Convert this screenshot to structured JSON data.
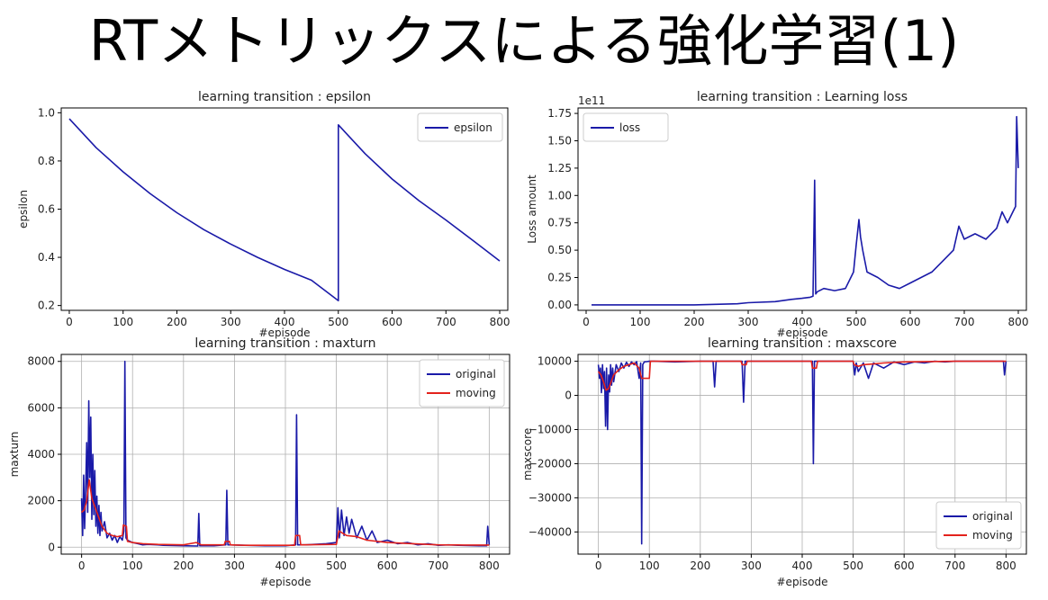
{
  "slide": {
    "title": "RTメトリックスによる強化学習(1)"
  },
  "colors": {
    "original": "#1a1aa8",
    "moving": "#e3221c",
    "axis": "#000000",
    "grid": "#b0b0b0"
  },
  "chart_data": [
    {
      "id": "epsilon",
      "type": "line",
      "title": "learning transition : epsilon",
      "xlabel": "#episode",
      "ylabel": "epsilon",
      "xlim": [
        -15,
        815
      ],
      "ylim": [
        0.18,
        1.02
      ],
      "xticks": [
        0,
        100,
        200,
        300,
        400,
        500,
        600,
        700,
        800
      ],
      "yticks": [
        0.2,
        0.4,
        0.6,
        0.8,
        1.0
      ],
      "ytick_labels": [
        "0.2",
        "0.4",
        "0.6",
        "0.8",
        "1.0"
      ],
      "grid": false,
      "legend_position": "top-right",
      "series": [
        {
          "name": "epsilon",
          "color": "#1a1aa8",
          "x": [
            0,
            50,
            100,
            150,
            200,
            250,
            300,
            350,
            400,
            450,
            500,
            500,
            550,
            600,
            650,
            700,
            750,
            800
          ],
          "y": [
            0.975,
            0.855,
            0.755,
            0.665,
            0.585,
            0.515,
            0.455,
            0.4,
            0.35,
            0.305,
            0.22,
            0.95,
            0.83,
            0.725,
            0.635,
            0.555,
            0.47,
            0.385
          ]
        }
      ]
    },
    {
      "id": "loss",
      "type": "line",
      "title": "learning transition : Learning loss",
      "xlabel": "#episode",
      "ylabel": "Loss amount",
      "offset_label": "1e11",
      "xlim": [
        -15,
        815
      ],
      "ylim": [
        -0.05,
        1.8
      ],
      "xticks": [
        0,
        100,
        200,
        300,
        400,
        500,
        600,
        700,
        800
      ],
      "yticks": [
        0,
        0.25,
        0.5,
        0.75,
        1.0,
        1.25,
        1.5,
        1.75
      ],
      "ytick_labels": [
        "0.00",
        "0.25",
        "0.50",
        "0.75",
        "1.00",
        "1.25",
        "1.50",
        "1.75"
      ],
      "grid": false,
      "legend_position": "top-left",
      "series": [
        {
          "name": "loss",
          "color": "#1a1aa8",
          "x": [
            10,
            100,
            200,
            280,
            300,
            350,
            380,
            400,
            415,
            420,
            423,
            425,
            428,
            440,
            460,
            480,
            495,
            500,
            505,
            508,
            512,
            520,
            540,
            560,
            580,
            600,
            620,
            640,
            660,
            680,
            690,
            700,
            720,
            740,
            760,
            770,
            780,
            785,
            790,
            795,
            797,
            800
          ],
          "y": [
            0.0,
            0.0,
            0.0,
            0.01,
            0.02,
            0.03,
            0.05,
            0.06,
            0.07,
            0.08,
            1.14,
            0.1,
            0.12,
            0.15,
            0.13,
            0.15,
            0.3,
            0.55,
            0.78,
            0.62,
            0.5,
            0.3,
            0.25,
            0.18,
            0.15,
            0.2,
            0.25,
            0.3,
            0.4,
            0.5,
            0.72,
            0.6,
            0.65,
            0.6,
            0.7,
            0.85,
            0.75,
            0.8,
            0.85,
            0.9,
            1.72,
            1.25
          ]
        }
      ]
    },
    {
      "id": "maxturn",
      "type": "line",
      "title": "learning transition : maxturn",
      "xlabel": "#episode",
      "ylabel": "maxturn",
      "xlim": [
        -40,
        840
      ],
      "ylim": [
        -300,
        8300
      ],
      "xticks": [
        0,
        100,
        200,
        300,
        400,
        500,
        600,
        700,
        800
      ],
      "yticks": [
        0,
        2000,
        4000,
        6000,
        8000
      ],
      "ytick_labels": [
        "0",
        "2000",
        "4000",
        "6000",
        "8000"
      ],
      "grid": true,
      "legend_position": "top-right",
      "series": [
        {
          "name": "original",
          "color": "#1a1aa8",
          "x": [
            0,
            2,
            4,
            6,
            8,
            10,
            12,
            14,
            16,
            18,
            20,
            22,
            24,
            26,
            28,
            30,
            32,
            34,
            36,
            38,
            40,
            45,
            50,
            55,
            60,
            65,
            70,
            75,
            80,
            83,
            85,
            87,
            90,
            95,
            100,
            110,
            120,
            130,
            150,
            160,
            200,
            228,
            230,
            232,
            260,
            283,
            285,
            287,
            320,
            360,
            400,
            420,
            422,
            424,
            440,
            480,
            500,
            503,
            506,
            510,
            515,
            520,
            525,
            530,
            540,
            550,
            560,
            570,
            580,
            600,
            620,
            640,
            660,
            680,
            700,
            720,
            740,
            760,
            780,
            795,
            797,
            800
          ],
          "y": [
            2100,
            500,
            3100,
            800,
            2600,
            4500,
            1500,
            6300,
            3000,
            5600,
            1200,
            4000,
            1400,
            3300,
            900,
            2200,
            600,
            1800,
            500,
            1500,
            700,
            1100,
            400,
            600,
            300,
            500,
            200,
            450,
            300,
            700,
            8000,
            400,
            300,
            250,
            200,
            150,
            100,
            120,
            100,
            80,
            60,
            50,
            1450,
            60,
            60,
            100,
            2450,
            100,
            80,
            60,
            60,
            100,
            5700,
            100,
            100,
            150,
            200,
            1700,
            400,
            1600,
            500,
            1300,
            600,
            1200,
            400,
            900,
            300,
            700,
            200,
            300,
            150,
            200,
            100,
            150,
            80,
            100,
            80,
            70,
            60,
            60,
            900,
            100
          ]
        },
        {
          "name": "moving",
          "color": "#e3221c",
          "x": [
            0,
            5,
            10,
            15,
            20,
            25,
            30,
            35,
            40,
            50,
            60,
            70,
            80,
            82,
            88,
            90,
            100,
            120,
            150,
            200,
            225,
            235,
            280,
            282,
            290,
            292,
            320,
            400,
            418,
            420,
            428,
            430,
            500,
            505,
            520,
            540,
            560,
            600,
            650,
            700,
            750,
            800
          ],
          "y": [
            1500,
            1600,
            2000,
            2900,
            2100,
            1800,
            1500,
            1200,
            900,
            600,
            500,
            450,
            500,
            950,
            900,
            250,
            200,
            150,
            120,
            100,
            200,
            100,
            100,
            250,
            250,
            100,
            80,
            80,
            80,
            500,
            500,
            100,
            120,
            700,
            500,
            450,
            300,
            200,
            150,
            100,
            90,
            90
          ]
        }
      ]
    },
    {
      "id": "maxscore",
      "type": "line",
      "title": "learning transition : maxscore",
      "xlabel": "#episode",
      "ylabel": "maxscore",
      "xlim": [
        -40,
        840
      ],
      "ylim": [
        -46500,
        12000
      ],
      "xticks": [
        0,
        100,
        200,
        300,
        400,
        500,
        600,
        700,
        800
      ],
      "yticks": [
        -40000,
        -30000,
        -20000,
        -10000,
        0,
        10000
      ],
      "ytick_labels": [
        "−40000",
        "−30000",
        "−20000",
        "−10000",
        "0",
        "10000"
      ],
      "grid": true,
      "legend_position": "bottom-right",
      "series": [
        {
          "name": "original",
          "color": "#1a1aa8",
          "x": [
            0,
            2,
            4,
            6,
            8,
            10,
            12,
            14,
            16,
            18,
            20,
            22,
            24,
            26,
            28,
            30,
            35,
            40,
            45,
            50,
            55,
            60,
            65,
            70,
            75,
            80,
            83,
            85,
            87,
            90,
            95,
            100,
            110,
            150,
            200,
            225,
            228,
            231,
            260,
            282,
            285,
            288,
            320,
            400,
            420,
            422,
            424,
            440,
            480,
            500,
            503,
            506,
            510,
            520,
            530,
            540,
            560,
            580,
            600,
            620,
            640,
            660,
            680,
            700,
            720,
            740,
            760,
            780,
            795,
            797,
            800
          ],
          "y": [
            9000,
            5000,
            8000,
            800,
            9000,
            2000,
            7000,
            -9000,
            8000,
            -10000,
            6000,
            1000,
            9000,
            3000,
            8000,
            4000,
            9000,
            7000,
            9500,
            8000,
            9700,
            8500,
            9800,
            9000,
            9900,
            5000,
            9500,
            -43500,
            9000,
            9800,
            9900,
            10000,
            10000,
            9800,
            10000,
            10000,
            2500,
            10000,
            10000,
            10000,
            -2000,
            10000,
            10000,
            10000,
            10000,
            -20000,
            10000,
            10000,
            10000,
            10000,
            6000,
            9500,
            7000,
            9500,
            5000,
            9500,
            8000,
            9800,
            9000,
            9800,
            9500,
            10000,
            9800,
            10000,
            10000,
            10000,
            10000,
            10000,
            10000,
            6000,
            10000
          ]
        },
        {
          "name": "moving",
          "color": "#e3221c",
          "x": [
            0,
            5,
            10,
            15,
            20,
            25,
            30,
            40,
            50,
            60,
            70,
            80,
            85,
            90,
            100,
            102,
            200,
            280,
            282,
            290,
            292,
            400,
            418,
            420,
            428,
            430,
            500,
            502,
            510,
            520,
            540,
            560,
            600,
            700,
            800
          ],
          "y": [
            7000,
            6000,
            4000,
            1500,
            2000,
            4000,
            6000,
            7500,
            8500,
            9000,
            9500,
            8000,
            5000,
            5000,
            5000,
            10000,
            10000,
            10000,
            9000,
            9000,
            10000,
            10000,
            10000,
            8000,
            8000,
            10000,
            10000,
            9000,
            8500,
            9000,
            9200,
            9500,
            9800,
            10000,
            10000
          ]
        }
      ]
    }
  ]
}
